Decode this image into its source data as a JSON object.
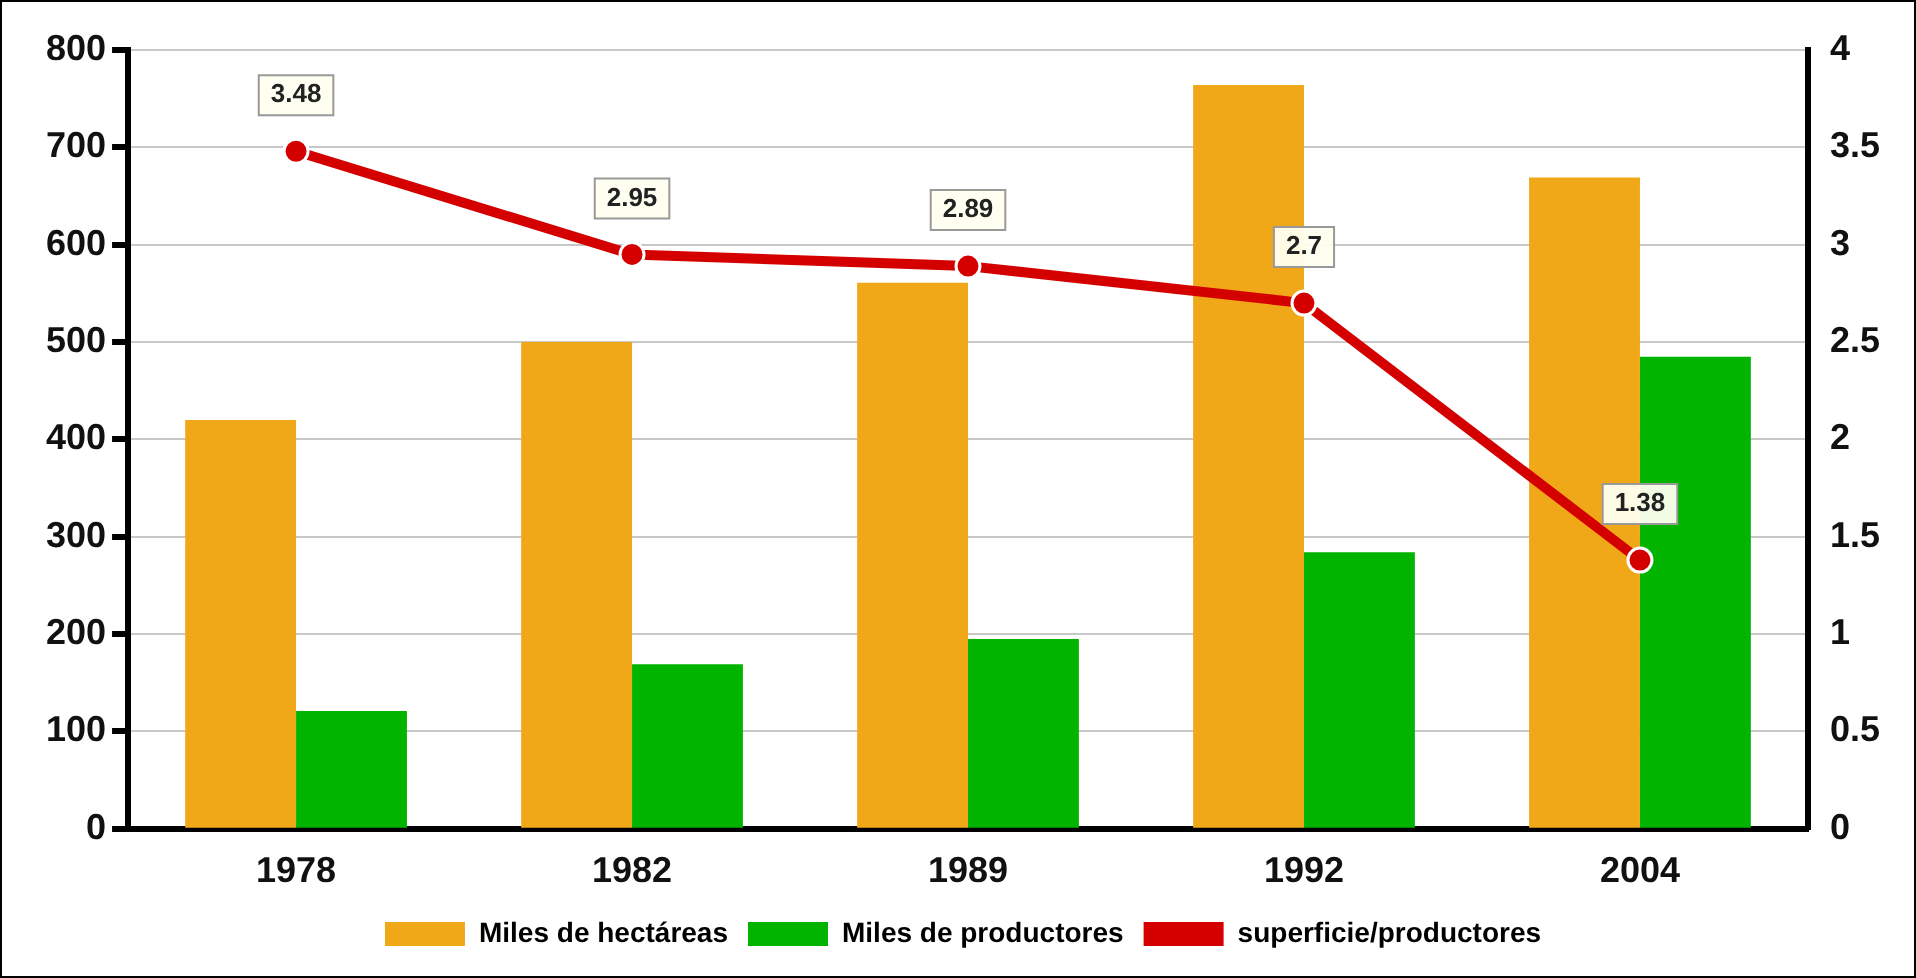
{
  "chart_data": {
    "type": "bar",
    "categories": [
      "1978",
      "1982",
      "1989",
      "1992",
      "2004"
    ],
    "series": [
      {
        "name": "Miles de hectáreas",
        "color": "#f0a818",
        "values": [
          420,
          500,
          561,
          764,
          669
        ]
      },
      {
        "name": "Miles de productores",
        "color": "#00b400",
        "values": [
          121,
          169,
          195,
          284,
          485
        ]
      },
      {
        "name": "superficie/productores",
        "type": "line",
        "axis": "y2",
        "color": "#d40000",
        "marker": "circle",
        "values": [
          3.48,
          2.95,
          2.89,
          2.7,
          1.38
        ],
        "value_labels": [
          "3.48",
          "2.95",
          "2.89",
          "2.7",
          "1.38"
        ]
      }
    ],
    "ylim": [
      0,
      800
    ],
    "yticks": [
      0,
      100,
      200,
      300,
      400,
      500,
      600,
      700,
      800
    ],
    "y2lim": [
      0,
      4
    ],
    "y2ticks": [
      0,
      0.5,
      1,
      1.5,
      2,
      2.5,
      3,
      3.5,
      4
    ],
    "grid": "y",
    "legend": "bottom"
  }
}
